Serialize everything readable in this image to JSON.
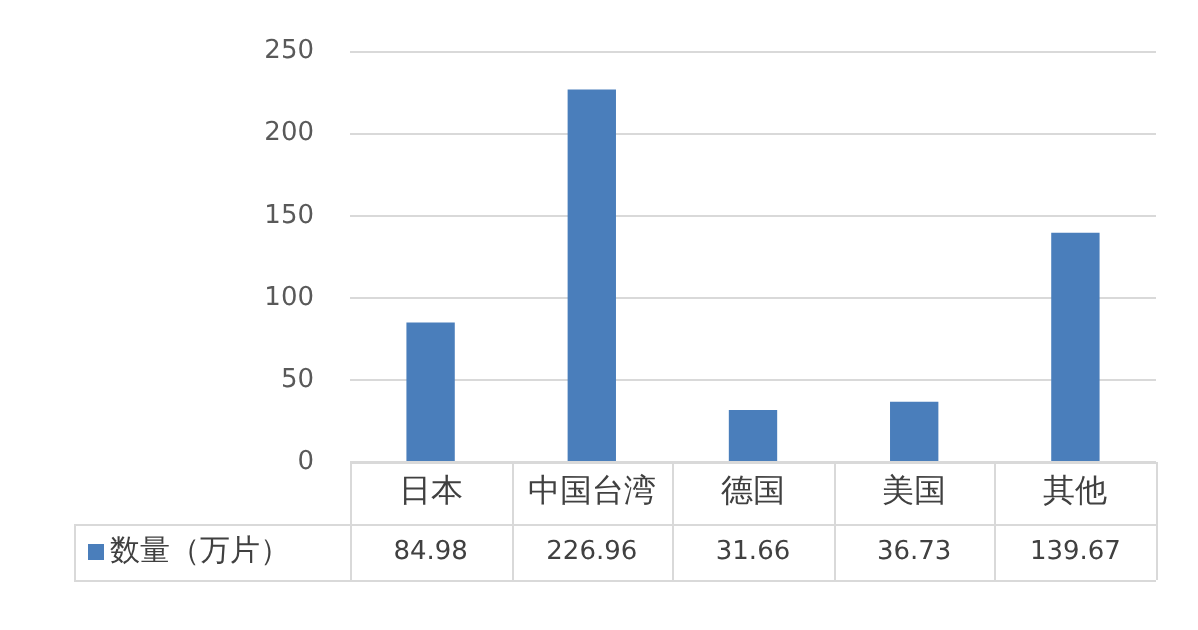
{
  "chart_data": {
    "type": "bar",
    "categories": [
      "日本",
      "中国台湾",
      "德国",
      "美国",
      "其他"
    ],
    "series": [
      {
        "name": "数量（万片）",
        "color": "#4a7ebb",
        "values": [
          84.98,
          226.96,
          31.66,
          36.73,
          139.67
        ]
      }
    ],
    "ylim": [
      0,
      250
    ],
    "yticks": [
      0,
      50,
      100,
      150,
      200,
      250
    ],
    "grid": "y",
    "legend": "bottom",
    "data_labels": true
  }
}
